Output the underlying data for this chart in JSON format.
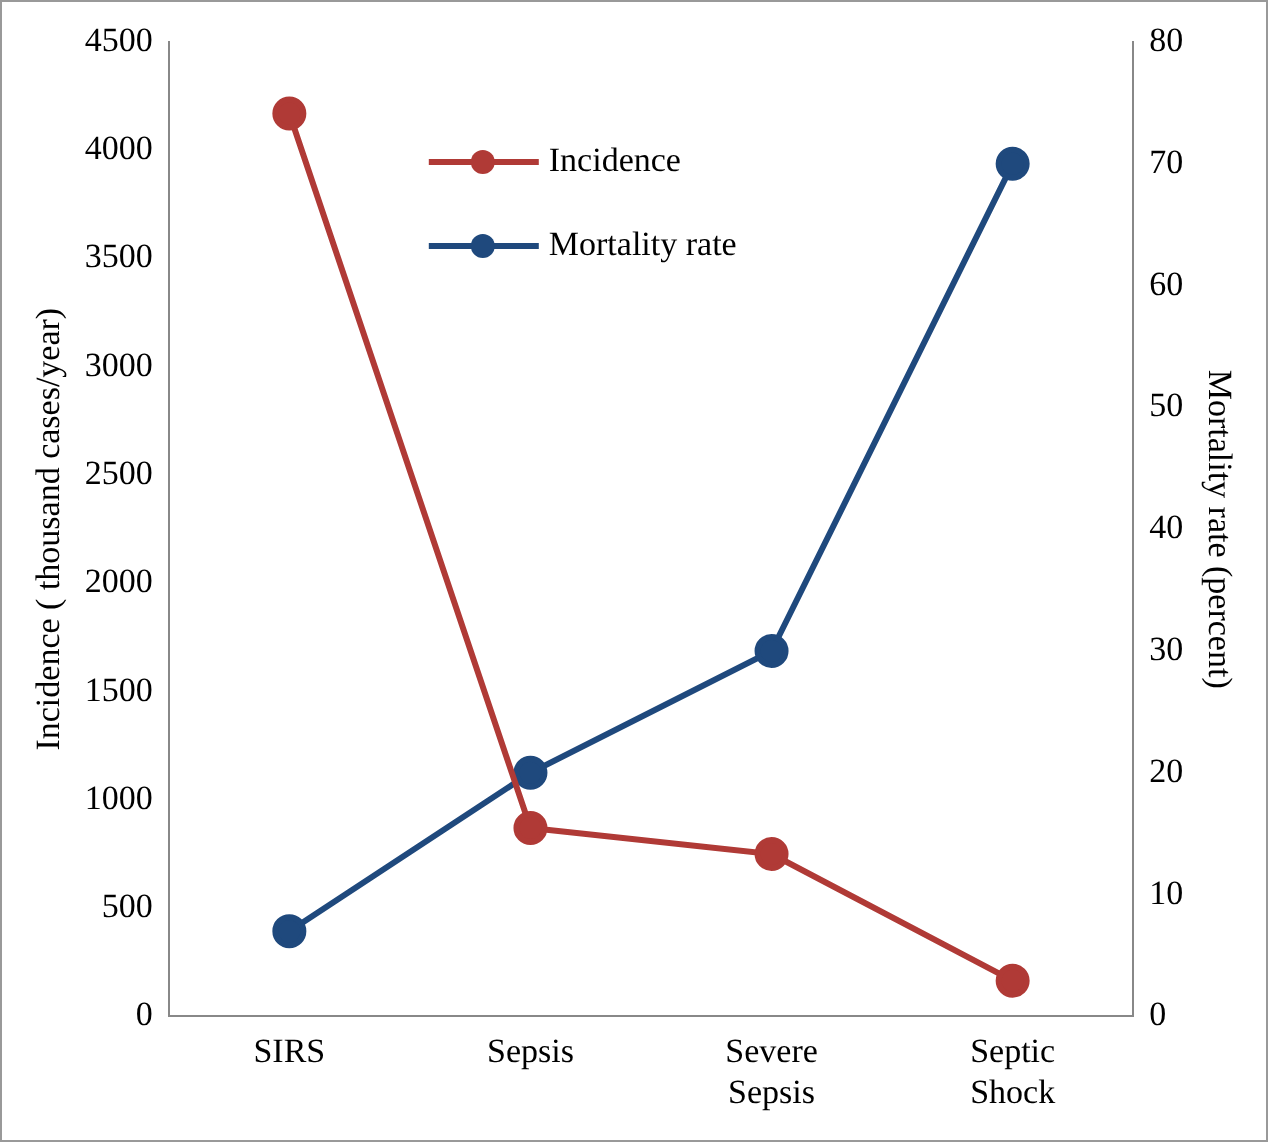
{
  "chart_data": {
    "type": "line",
    "categories": [
      "SIRS",
      "Sepsis",
      "Severe Sepsis",
      "Septic Shock"
    ],
    "ylabel": "Incidence ( thousand cases/year)",
    "y2label": "Mortality rate (percent)",
    "ylim": [
      0,
      4500
    ],
    "yticks": [
      0,
      500,
      1000,
      1500,
      2000,
      2500,
      3000,
      3500,
      4000,
      4500
    ],
    "y2lim": [
      0,
      80
    ],
    "y2ticks": [
      0,
      10,
      20,
      30,
      40,
      50,
      60,
      70,
      80
    ],
    "series": [
      {
        "name": "Incidence",
        "color": "#b03a36",
        "values": [
          4170,
          870,
          750,
          165
        ]
      },
      {
        "name": "Mortality rate",
        "color": "#1f497d",
        "axis": "y2",
        "values": [
          7,
          20,
          30,
          70
        ]
      }
    ],
    "marker": "circle",
    "line_style": "solid",
    "grid": false,
    "legend": "top"
  }
}
